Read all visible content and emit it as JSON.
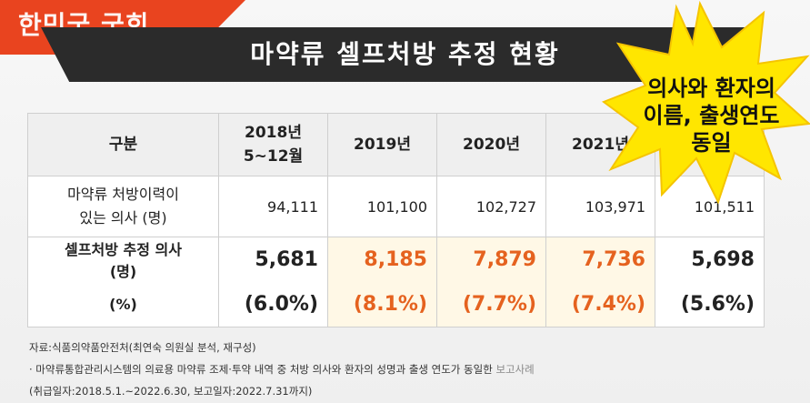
{
  "logo": {
    "text": "한민국 국회"
  },
  "title": "마약류 셀프처방 추정 현황",
  "callout": {
    "line1": "의사와 환자의",
    "line2": "이름, 출생연도",
    "line3": "동일",
    "color": "#ffe600"
  },
  "table": {
    "header": {
      "category": "구분",
      "col2018_line1": "2018년",
      "col2018_line2": "5~12월",
      "col2019": "2019년",
      "col2020": "2020년",
      "col2021": "2021년",
      "col2022": ""
    },
    "row_rx": {
      "label_line1": "마약류 처방이력이",
      "label_line2": "있는 의사 (명)",
      "values": [
        "94,111",
        "101,100",
        "102,727",
        "103,971",
        "101,511"
      ]
    },
    "row_self": {
      "label_line1": "셀프처방 추정 의사",
      "label_line2": "(명)",
      "values": [
        "5,681",
        "8,185",
        "7,879",
        "7,736",
        "5,698"
      ]
    },
    "row_pct": {
      "label": "(%)",
      "values": [
        "(6.0%)",
        "(8.1%)",
        "(7.7%)",
        "(7.4%)",
        "(5.6%)"
      ]
    },
    "highlight_color": "#e5621f"
  },
  "notes": {
    "source": "자료:식품의약품안전처(최연숙 의원실 분석, 재구성)",
    "note1_main": "· 마약류통합관리시스템의 의료용 마약류 조제·투약 내역 중 처방 의사와 환자의 성명과 출생 연도가 동일한 ",
    "note1_faded": "보고사례",
    "note2": "(취급일자:2018.5.1.~2022.6.30, 보고일자:2022.7.31까지)"
  }
}
